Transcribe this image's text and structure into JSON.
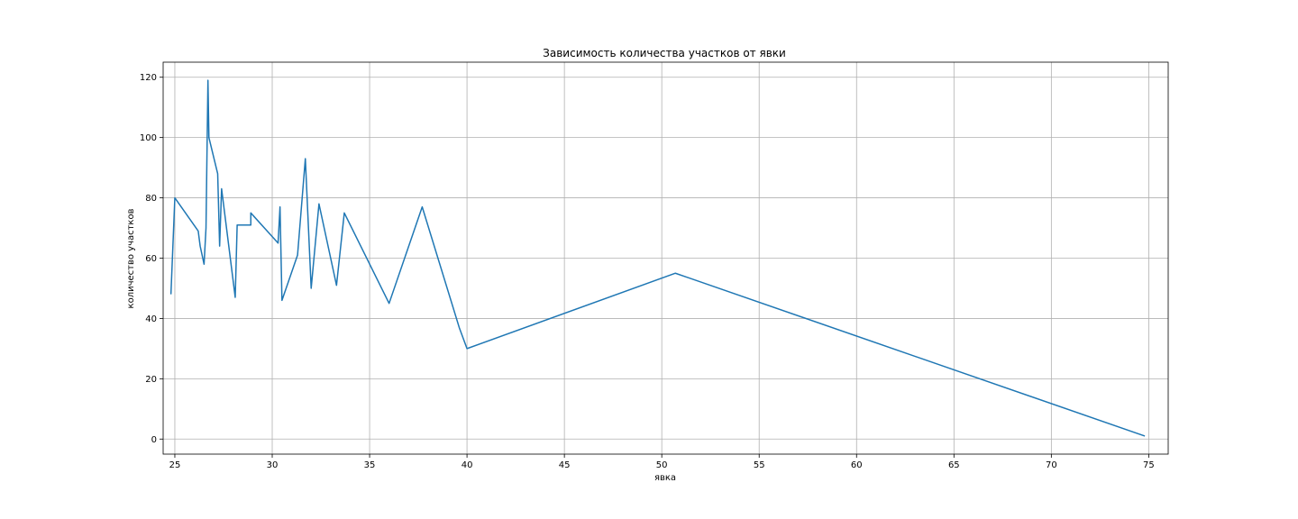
{
  "chart_data": {
    "type": "line",
    "title": "Зависимость количества участков от явки",
    "xlabel": "явка",
    "ylabel": "количество участков",
    "xlim": [
      24.4,
      76.0
    ],
    "ylim": [
      -5,
      125
    ],
    "xticks": [
      25,
      30,
      35,
      40,
      45,
      50,
      55,
      60,
      65,
      70,
      75
    ],
    "yticks": [
      0,
      20,
      40,
      60,
      80,
      100,
      120
    ],
    "grid": true,
    "series": [
      {
        "color": "#1f77b4",
        "points": [
          [
            24.8,
            48
          ],
          [
            25.0,
            80
          ],
          [
            26.2,
            69
          ],
          [
            26.3,
            64
          ],
          [
            26.5,
            58
          ],
          [
            26.6,
            70
          ],
          [
            26.7,
            119
          ],
          [
            26.75,
            100
          ],
          [
            27.2,
            88
          ],
          [
            27.3,
            64
          ],
          [
            27.4,
            83
          ],
          [
            28.1,
            47
          ],
          [
            28.2,
            71
          ],
          [
            28.9,
            71
          ],
          [
            28.9,
            75
          ],
          [
            30.3,
            65
          ],
          [
            30.4,
            77
          ],
          [
            30.5,
            46
          ],
          [
            31.3,
            61
          ],
          [
            31.7,
            93
          ],
          [
            32.0,
            50
          ],
          [
            32.4,
            78
          ],
          [
            33.3,
            51
          ],
          [
            33.7,
            75
          ],
          [
            36.0,
            45
          ],
          [
            37.7,
            77
          ],
          [
            39.6,
            37
          ],
          [
            40.0,
            30
          ],
          [
            50.7,
            55
          ],
          [
            74.8,
            1
          ]
        ]
      }
    ]
  }
}
